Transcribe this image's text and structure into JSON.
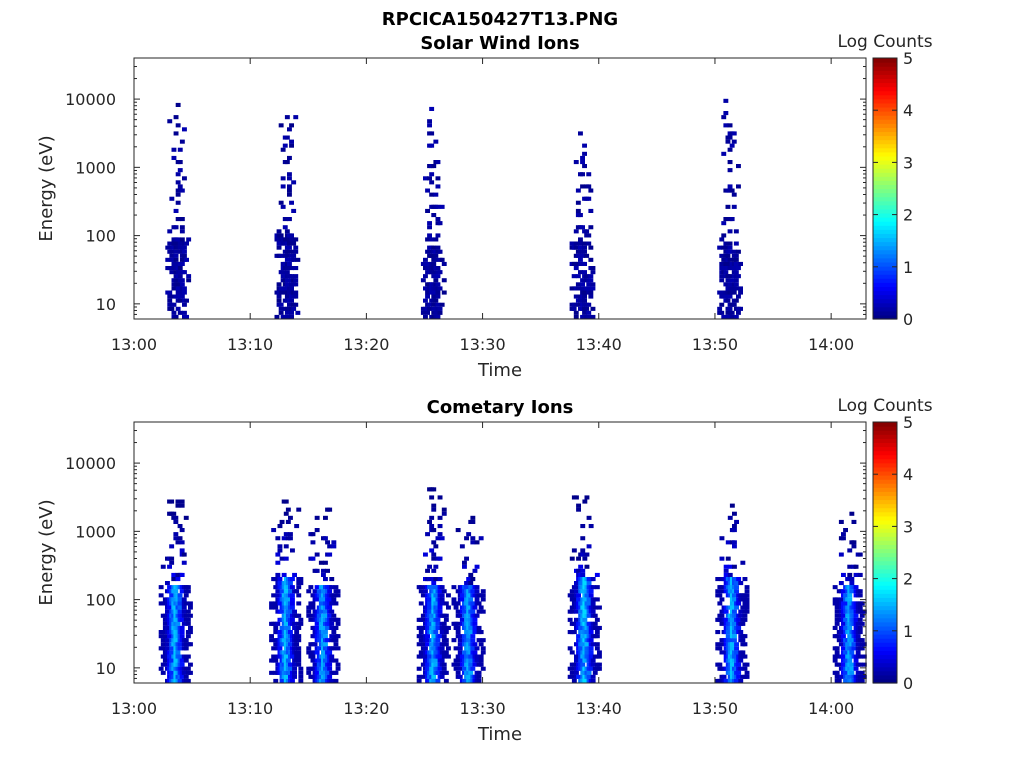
{
  "figure": {
    "title": "RPCICA150427T13.PNG"
  },
  "chart_data": [
    {
      "type": "heatmap",
      "title": "Solar Wind Ions",
      "xlabel": "Time",
      "ylabel": "Energy (eV)",
      "x_ticks": [
        "13:00",
        "13:10",
        "13:20",
        "13:30",
        "13:40",
        "13:50",
        "14:00"
      ],
      "y_ticks": [
        "10",
        "100",
        "1000",
        "10000"
      ],
      "y_scale": "log",
      "ylim": [
        6,
        40000
      ],
      "xlim_minutes": [
        0,
        63
      ],
      "colorbar": {
        "label": "Log Counts",
        "ticks": [
          "0",
          "1",
          "2",
          "3",
          "4",
          "5"
        ],
        "range": [
          0,
          5
        ],
        "colormap": "jet"
      },
      "bursts": [
        {
          "center_min": 3.8,
          "low_energy_max": 90,
          "sparse_energy_max": 8000,
          "peak_log_counts": 0.3
        },
        {
          "center_min": 13.2,
          "low_energy_max": 100,
          "sparse_energy_max": 6500,
          "peak_log_counts": 0.3
        },
        {
          "center_min": 25.8,
          "low_energy_max": 70,
          "sparse_energy_max": 7000,
          "peak_log_counts": 0.3
        },
        {
          "center_min": 38.6,
          "low_energy_max": 80,
          "sparse_energy_max": 4000,
          "peak_log_counts": 0.3
        },
        {
          "center_min": 51.3,
          "low_energy_max": 80,
          "sparse_energy_max": 10000,
          "peak_log_counts": 0.3
        }
      ]
    },
    {
      "type": "heatmap",
      "title": "Cometary Ions",
      "xlabel": "Time",
      "ylabel": "Energy (eV)",
      "x_ticks": [
        "13:00",
        "13:10",
        "13:20",
        "13:30",
        "13:40",
        "13:50",
        "14:00"
      ],
      "y_ticks": [
        "10",
        "100",
        "1000",
        "10000"
      ],
      "y_scale": "log",
      "ylim": [
        6,
        40000
      ],
      "xlim_minutes": [
        0,
        63
      ],
      "colorbar": {
        "label": "Log Counts",
        "ticks": [
          "0",
          "1",
          "2",
          "3",
          "4",
          "5"
        ],
        "range": [
          0,
          5
        ],
        "colormap": "jet"
      },
      "bursts": [
        {
          "center_min": 3.6,
          "low_energy_max": 150,
          "sparse_energy_max": 2800,
          "peak_log_counts": 1.6
        },
        {
          "center_min": 13.1,
          "low_energy_max": 200,
          "sparse_energy_max": 2600,
          "peak_log_counts": 1.6
        },
        {
          "center_min": 16.3,
          "low_energy_max": 150,
          "sparse_energy_max": 2200,
          "peak_log_counts": 1.5
        },
        {
          "center_min": 25.8,
          "low_energy_max": 150,
          "sparse_energy_max": 4200,
          "peak_log_counts": 1.6
        },
        {
          "center_min": 28.8,
          "low_energy_max": 150,
          "sparse_energy_max": 1800,
          "peak_log_counts": 1.5
        },
        {
          "center_min": 38.8,
          "low_energy_max": 200,
          "sparse_energy_max": 3000,
          "peak_log_counts": 1.7
        },
        {
          "center_min": 51.5,
          "low_energy_max": 200,
          "sparse_energy_max": 2700,
          "peak_log_counts": 1.6
        },
        {
          "center_min": 61.6,
          "low_energy_max": 150,
          "sparse_energy_max": 1700,
          "peak_log_counts": 1.5
        }
      ]
    }
  ]
}
